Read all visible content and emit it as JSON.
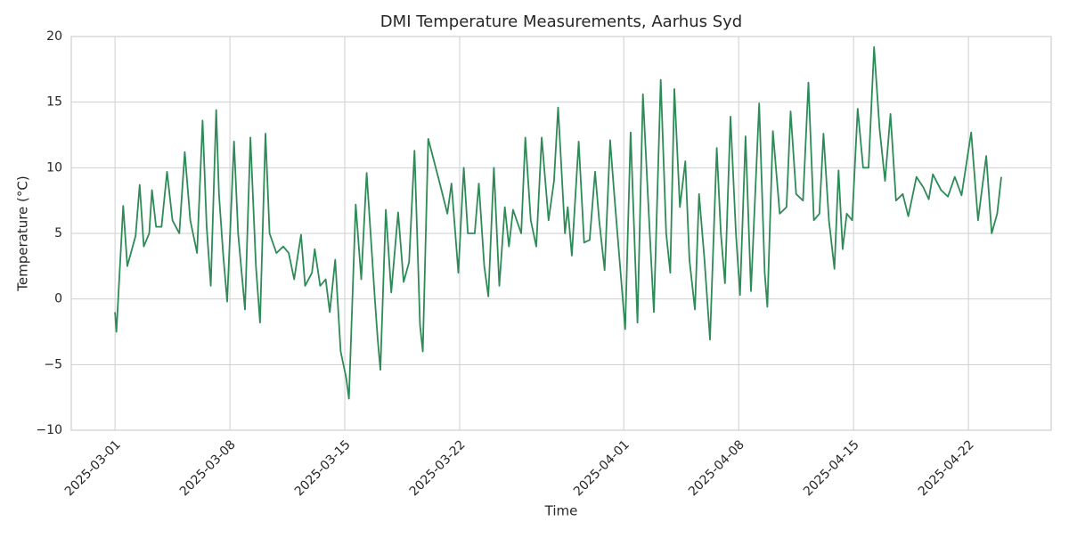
{
  "chart_data": {
    "type": "line",
    "title": "DMI Temperature Measurements, Aarhus Syd",
    "x_label": "Time",
    "y_label": "Temperature (°C)",
    "color": "#2e8b57",
    "grid": true,
    "xlim": [
      "2025-02-26 08:00",
      "2025-04-27 01:00"
    ],
    "xticks": [
      "2025-03-01",
      "2025-03-08",
      "2025-03-15",
      "2025-03-22",
      "2025-04-01",
      "2025-04-08",
      "2025-04-15",
      "2025-04-22"
    ],
    "ylim": [
      -10,
      20
    ],
    "yticks": [
      {
        "value": -10,
        "label": "−10"
      },
      {
        "value": -5,
        "label": "−5"
      },
      0,
      5,
      10,
      15,
      20
    ],
    "x": [
      "2025-03-01 00:00",
      "2025-03-01 02:00",
      "2025-03-01 12:00",
      "2025-03-01 18:00",
      "2025-03-02 06:00",
      "2025-03-02 12:00",
      "2025-03-02 18:00",
      "2025-03-03 02:00",
      "2025-03-03 06:00",
      "2025-03-03 12:00",
      "2025-03-03 20:00",
      "2025-03-04 04:00",
      "2025-03-04 12:00",
      "2025-03-04 22:00",
      "2025-03-05 06:00",
      "2025-03-05 14:00",
      "2025-03-06 00:00",
      "2025-03-06 08:00",
      "2025-03-06 14:00",
      "2025-03-06 20:00",
      "2025-03-07 04:00",
      "2025-03-07 08:00",
      "2025-03-07 14:00",
      "2025-03-07 20:00",
      "2025-03-08 06:00",
      "2025-03-08 12:00",
      "2025-03-08 22:00",
      "2025-03-09 06:00",
      "2025-03-09 14:00",
      "2025-03-09 20:00",
      "2025-03-10 04:00",
      "2025-03-10 10:00",
      "2025-03-10 20:00",
      "2025-03-11 06:00",
      "2025-03-11 14:00",
      "2025-03-11 22:00",
      "2025-03-12 08:00",
      "2025-03-12 14:00",
      "2025-03-13 00:00",
      "2025-03-13 04:00",
      "2025-03-13 12:00",
      "2025-03-13 20:00",
      "2025-03-14 02:00",
      "2025-03-14 10:00",
      "2025-03-14 18:00",
      "2025-03-15 02:00",
      "2025-03-15 06:00",
      "2025-03-15 16:00",
      "2025-03-16 00:00",
      "2025-03-16 08:00",
      "2025-03-16 20:00",
      "2025-03-17 00:00",
      "2025-03-17 04:00",
      "2025-03-17 12:00",
      "2025-03-17 20:00",
      "2025-03-18 06:00",
      "2025-03-18 14:00",
      "2025-03-18 22:00",
      "2025-03-19 06:00",
      "2025-03-19 14:00",
      "2025-03-19 18:00",
      "2025-03-20 02:00",
      "2025-03-20 18:00",
      "2025-03-21 06:00",
      "2025-03-21 12:00",
      "2025-03-21 22:00",
      "2025-03-22 06:00",
      "2025-03-22 12:00",
      "2025-03-22 22:00",
      "2025-03-23 04:00",
      "2025-03-23 12:00",
      "2025-03-23 18:00",
      "2025-03-24 02:00",
      "2025-03-24 10:00",
      "2025-03-24 18:00",
      "2025-03-25 00:00",
      "2025-03-25 06:00",
      "2025-03-25 18:00",
      "2025-03-26 00:00",
      "2025-03-26 08:00",
      "2025-03-26 16:00",
      "2025-03-27 00:00",
      "2025-03-27 10:00",
      "2025-03-27 18:00",
      "2025-03-28 00:00",
      "2025-03-28 10:00",
      "2025-03-28 14:00",
      "2025-03-28 20:00",
      "2025-03-29 06:00",
      "2025-03-29 14:00",
      "2025-03-29 22:00",
      "2025-03-30 06:00",
      "2025-03-30 12:00",
      "2025-03-30 20:00",
      "2025-03-31 04:00",
      "2025-03-31 10:00",
      "2025-04-01 02:00",
      "2025-04-01 10:00",
      "2025-04-01 20:00",
      "2025-04-02 04:00",
      "2025-04-02 14:00",
      "2025-04-02 20:00",
      "2025-04-03 06:00",
      "2025-04-03 14:00",
      "2025-04-03 20:00",
      "2025-04-04 02:00",
      "2025-04-04 10:00",
      "2025-04-04 18:00",
      "2025-04-05 00:00",
      "2025-04-05 08:00",
      "2025-04-05 14:00",
      "2025-04-05 22:00",
      "2025-04-06 06:00",
      "2025-04-06 16:00",
      "2025-04-06 22:00",
      "2025-04-07 04:00",
      "2025-04-07 12:00",
      "2025-04-07 20:00",
      "2025-04-08 02:00",
      "2025-04-08 10:00",
      "2025-04-08 18:00",
      "2025-04-09 06:00",
      "2025-04-09 14:00",
      "2025-04-09 18:00",
      "2025-04-10 02:00",
      "2025-04-10 12:00",
      "2025-04-10 22:00",
      "2025-04-11 04:00",
      "2025-04-11 12:00",
      "2025-04-11 22:00",
      "2025-04-12 06:00",
      "2025-04-12 14:00",
      "2025-04-12 22:00",
      "2025-04-13 04:00",
      "2025-04-13 12:00",
      "2025-04-13 20:00",
      "2025-04-14 02:00",
      "2025-04-14 08:00",
      "2025-04-14 14:00",
      "2025-04-14 22:00",
      "2025-04-15 06:00",
      "2025-04-15 14:00",
      "2025-04-15 22:00",
      "2025-04-16 06:00",
      "2025-04-16 14:00",
      "2025-04-16 22:00",
      "2025-04-17 06:00",
      "2025-04-17 14:00",
      "2025-04-18 00:00",
      "2025-04-18 08:00",
      "2025-04-18 20:00",
      "2025-04-19 06:00",
      "2025-04-19 14:00",
      "2025-04-19 20:00",
      "2025-04-20 08:00",
      "2025-04-20 18:00",
      "2025-04-21 04:00",
      "2025-04-21 14:00",
      "2025-04-22 04:00",
      "2025-04-22 14:00",
      "2025-04-23 02:00",
      "2025-04-23 10:00",
      "2025-04-23 18:00",
      "2025-04-24 00:00"
    ],
    "values": [
      -1,
      -2.5,
      7.1,
      2.5,
      4.8,
      8.7,
      4,
      5,
      8.3,
      5.5,
      5.5,
      9.7,
      6,
      5,
      11.2,
      6,
      3.5,
      13.6,
      5.5,
      1,
      14.4,
      8,
      3.5,
      -0.2,
      12,
      5,
      -0.8,
      12.3,
      2.5,
      -1.8,
      12.6,
      5,
      3.5,
      4,
      3.5,
      1.5,
      4.9,
      1,
      2,
      3.8,
      1,
      1.5,
      -1,
      3,
      -4,
      -6,
      -7.6,
      7.2,
      1.5,
      9.6,
      0,
      -3,
      -5.4,
      6.8,
      0.5,
      6.6,
      1.3,
      2.8,
      11.3,
      -2,
      -4,
      12.2,
      9,
      6.5,
      8.8,
      2,
      10,
      5,
      5,
      8.8,
      2.5,
      0.2,
      10,
      1,
      7,
      4,
      6.8,
      5,
      12.3,
      6,
      4,
      12.3,
      6,
      9,
      14.6,
      5,
      7,
      3.3,
      12,
      4.3,
      4.5,
      9.7,
      6,
      2.2,
      12.1,
      8,
      -2.3,
      12.7,
      -1.8,
      15.6,
      5,
      -1,
      16.7,
      5,
      2,
      16,
      7,
      10.5,
      3,
      -0.8,
      8,
      3,
      -3.1,
      11.5,
      5,
      1.2,
      13.9,
      5,
      0.3,
      12.4,
      0.6,
      14.9,
      2,
      -0.6,
      12.8,
      6.5,
      7,
      14.3,
      8,
      7.5,
      16.5,
      6,
      6.5,
      12.6,
      6,
      2.3,
      9.8,
      3.8,
      6.5,
      6,
      14.5,
      10,
      10,
      19.2,
      13,
      9,
      14.1,
      7.5,
      8,
      6.3,
      9.3,
      8.5,
      7.6,
      9.5,
      8.3,
      7.8,
      9.3,
      7.9,
      12.7,
      6,
      10.9,
      5,
      6.5,
      9.3
    ]
  }
}
